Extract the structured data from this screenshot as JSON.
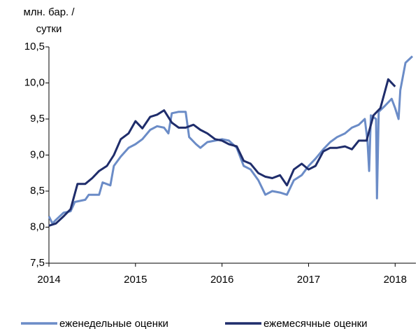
{
  "chart_data": {
    "type": "line",
    "ylabel": [
      "млн. бар. /",
      "сутки"
    ],
    "xlim": [
      2014,
      2018.24
    ],
    "xticks": [
      2014,
      2015,
      2016,
      2017,
      2018
    ],
    "ylim": [
      7.5,
      10.5
    ],
    "yticks": [
      {
        "value": 7.5,
        "label": "7,5"
      },
      {
        "value": 8.0,
        "label": "8,0"
      },
      {
        "value": 8.5,
        "label": "8,5"
      },
      {
        "value": 9.0,
        "label": "9,0"
      },
      {
        "value": 9.5,
        "label": "9,5"
      },
      {
        "value": 10.0,
        "label": "10,0"
      },
      {
        "value": 10.5,
        "label": "10,5"
      }
    ],
    "legend": "bottom",
    "series": [
      {
        "name": "еженедельные оценки",
        "color": "#6b8cc7",
        "x": [
          2014.0,
          2014.04,
          2014.08,
          2014.17,
          2014.25,
          2014.3,
          2014.42,
          2014.46,
          2014.54,
          2014.58,
          2014.62,
          2014.71,
          2014.75,
          2014.83,
          2014.92,
          2015.0,
          2015.08,
          2015.17,
          2015.25,
          2015.33,
          2015.38,
          2015.42,
          2015.5,
          2015.58,
          2015.62,
          2015.7,
          2015.75,
          2015.83,
          2015.92,
          2016.0,
          2016.08,
          2016.17,
          2016.25,
          2016.33,
          2016.42,
          2016.46,
          2016.5,
          2016.58,
          2016.67,
          2016.75,
          2016.83,
          2016.92,
          2017.0,
          2017.08,
          2017.17,
          2017.25,
          2017.33,
          2017.42,
          2017.5,
          2017.58,
          2017.65,
          2017.68,
          2017.7,
          2017.72,
          2017.78,
          2017.79,
          2017.81,
          2017.88,
          2017.96,
          2018.0,
          2018.04,
          2018.06,
          2018.12,
          2018.2
        ],
        "values": [
          8.15,
          8.05,
          8.1,
          8.2,
          8.22,
          8.35,
          8.38,
          8.45,
          8.45,
          8.45,
          8.62,
          8.58,
          8.85,
          8.98,
          9.1,
          9.15,
          9.22,
          9.35,
          9.4,
          9.38,
          9.3,
          9.58,
          9.6,
          9.6,
          9.25,
          9.15,
          9.1,
          9.18,
          9.2,
          9.22,
          9.2,
          9.1,
          8.85,
          8.8,
          8.65,
          8.55,
          8.45,
          8.5,
          8.48,
          8.45,
          8.65,
          8.72,
          8.85,
          8.95,
          9.08,
          9.18,
          9.25,
          9.3,
          9.38,
          9.42,
          9.5,
          9.2,
          8.78,
          9.55,
          9.5,
          8.4,
          9.6,
          9.68,
          9.78,
          9.65,
          9.5,
          9.9,
          10.28,
          10.37
        ]
      },
      {
        "name": "ежемесячные оценки",
        "color": "#1f2d6b",
        "x": [
          2014.0,
          2014.08,
          2014.17,
          2014.25,
          2014.33,
          2014.42,
          2014.5,
          2014.58,
          2014.67,
          2014.75,
          2014.83,
          2014.92,
          2015.0,
          2015.08,
          2015.17,
          2015.25,
          2015.33,
          2015.42,
          2015.5,
          2015.58,
          2015.67,
          2015.75,
          2015.83,
          2015.92,
          2016.0,
          2016.08,
          2016.17,
          2016.25,
          2016.33,
          2016.42,
          2016.5,
          2016.58,
          2016.67,
          2016.75,
          2016.83,
          2016.92,
          2017.0,
          2017.08,
          2017.17,
          2017.25,
          2017.33,
          2017.42,
          2017.5,
          2017.58,
          2017.67,
          2017.75,
          2017.83,
          2017.92,
          2018.0
        ],
        "values": [
          8.02,
          8.05,
          8.15,
          8.25,
          8.6,
          8.6,
          8.68,
          8.78,
          8.85,
          9.0,
          9.22,
          9.3,
          9.47,
          9.37,
          9.53,
          9.56,
          9.62,
          9.45,
          9.38,
          9.38,
          9.42,
          9.35,
          9.3,
          9.22,
          9.2,
          9.15,
          9.12,
          8.92,
          8.88,
          8.75,
          8.7,
          8.68,
          8.72,
          8.58,
          8.8,
          8.88,
          8.8,
          8.85,
          9.05,
          9.1,
          9.1,
          9.12,
          9.08,
          9.2,
          9.2,
          9.55,
          9.65,
          10.05,
          9.95
        ]
      }
    ]
  }
}
